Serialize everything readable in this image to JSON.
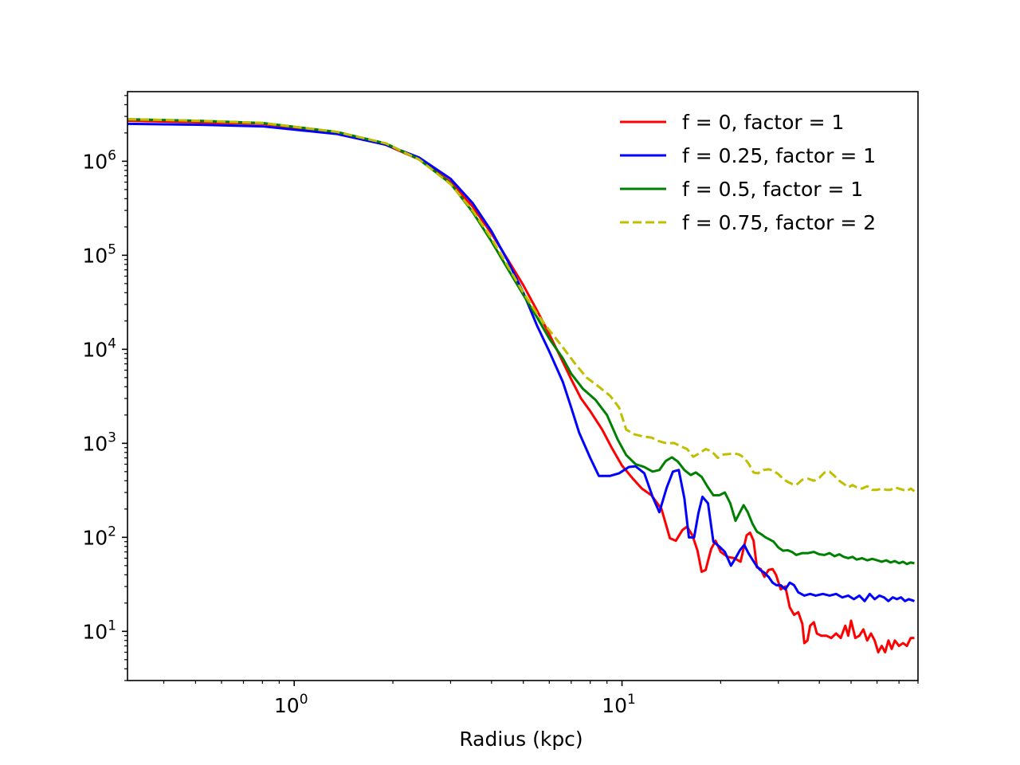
{
  "chart_data": {
    "type": "line",
    "title": "",
    "xlabel": "Radius (kpc)",
    "ylabel": "",
    "xscale": "log",
    "yscale": "log",
    "xlim": [
      0.31,
      80
    ],
    "ylim": [
      3,
      5500000
    ],
    "grid": false,
    "legend_position": "upper-right",
    "x_ticks": [
      {
        "value": 1,
        "base": "10",
        "exp": "0"
      },
      {
        "value": 10,
        "base": "10",
        "exp": "1"
      }
    ],
    "y_ticks": [
      {
        "value": 10,
        "base": "10",
        "exp": "1"
      },
      {
        "value": 100,
        "base": "10",
        "exp": "2"
      },
      {
        "value": 1000,
        "base": "10",
        "exp": "3"
      },
      {
        "value": 10000,
        "base": "10",
        "exp": "4"
      },
      {
        "value": 100000,
        "base": "10",
        "exp": "5"
      },
      {
        "value": 1000000,
        "base": "10",
        "exp": "6"
      }
    ],
    "series": [
      {
        "name": "f = 0, factor = 1",
        "color": "#ff0000",
        "dash": "solid",
        "points": [
          [
            0.31,
            2700000
          ],
          [
            0.5,
            2600000
          ],
          [
            0.8,
            2500000
          ],
          [
            1.35,
            2000000
          ],
          [
            1.9,
            1500000
          ],
          [
            2.4,
            1050000
          ],
          [
            3.0,
            600000
          ],
          [
            3.5,
            330000
          ],
          [
            4.0,
            170000
          ],
          [
            4.5,
            88000
          ],
          [
            5.0,
            48000
          ],
          [
            5.5,
            26000
          ],
          [
            6.0,
            14500
          ],
          [
            6.5,
            8200
          ],
          [
            7.0,
            4800
          ],
          [
            7.5,
            3000
          ],
          [
            8.0,
            2200
          ],
          [
            8.7,
            1400
          ],
          [
            9.3,
            900
          ],
          [
            10.0,
            580
          ],
          [
            10.8,
            420
          ],
          [
            11.5,
            330
          ],
          [
            12.3,
            280
          ],
          [
            13.2,
            200
          ],
          [
            14.0,
            98
          ],
          [
            14.6,
            92
          ],
          [
            15.3,
            120
          ],
          [
            15.8,
            130
          ],
          [
            16.4,
            105
          ],
          [
            17.0,
            72
          ],
          [
            17.5,
            43
          ],
          [
            18.0,
            45
          ],
          [
            18.7,
            75
          ],
          [
            19.3,
            92
          ],
          [
            20.0,
            70
          ],
          [
            21.0,
            62
          ],
          [
            22.0,
            60
          ],
          [
            23.0,
            55
          ],
          [
            24.0,
            105
          ],
          [
            24.6,
            112
          ],
          [
            25.2,
            92
          ],
          [
            25.8,
            48
          ],
          [
            26.5,
            46
          ],
          [
            27.2,
            38
          ],
          [
            28.0,
            45
          ],
          [
            28.8,
            46
          ],
          [
            29.5,
            40
          ],
          [
            30.5,
            28
          ],
          [
            31.5,
            30
          ],
          [
            32.5,
            18
          ],
          [
            33.5,
            15
          ],
          [
            34.5,
            16
          ],
          [
            35.5,
            12
          ],
          [
            36.0,
            7.5
          ],
          [
            36.8,
            8
          ],
          [
            37.5,
            11.5
          ],
          [
            38.5,
            12.5
          ],
          [
            39.3,
            9.5
          ],
          [
            40.5,
            9
          ],
          [
            42.0,
            9
          ],
          [
            43.5,
            8.5
          ],
          [
            45.0,
            9.5
          ],
          [
            46.5,
            8.5
          ],
          [
            48.0,
            11.5
          ],
          [
            49.0,
            9
          ],
          [
            50.0,
            13
          ],
          [
            51.5,
            8.5
          ],
          [
            53.0,
            9
          ],
          [
            54.5,
            10.5
          ],
          [
            56.0,
            8
          ],
          [
            57.5,
            9.5
          ],
          [
            59.0,
            8
          ],
          [
            60.5,
            6
          ],
          [
            62.0,
            7
          ],
          [
            63.5,
            6
          ],
          [
            65.0,
            8
          ],
          [
            66.5,
            6.5
          ],
          [
            68.0,
            8
          ],
          [
            70.0,
            7
          ],
          [
            72.0,
            7.5
          ],
          [
            74.0,
            7
          ],
          [
            76.0,
            8.5
          ],
          [
            78.0,
            8.5
          ]
        ]
      },
      {
        "name": "f = 0.25, factor = 1",
        "color": "#0000ff",
        "dash": "solid",
        "points": [
          [
            0.31,
            2500000
          ],
          [
            0.5,
            2450000
          ],
          [
            0.8,
            2350000
          ],
          [
            1.35,
            1950000
          ],
          [
            1.9,
            1500000
          ],
          [
            2.4,
            1100000
          ],
          [
            3.0,
            650000
          ],
          [
            3.5,
            360000
          ],
          [
            4.0,
            180000
          ],
          [
            4.5,
            85000
          ],
          [
            5.0,
            40000
          ],
          [
            5.5,
            18000
          ],
          [
            6.0,
            9500
          ],
          [
            6.6,
            4500
          ],
          [
            7.0,
            2400
          ],
          [
            7.4,
            1300
          ],
          [
            8.0,
            700
          ],
          [
            8.5,
            450
          ],
          [
            9.2,
            450
          ],
          [
            9.8,
            480
          ],
          [
            10.5,
            560
          ],
          [
            11.0,
            570
          ],
          [
            11.7,
            480
          ],
          [
            12.4,
            270
          ],
          [
            13.0,
            185
          ],
          [
            13.7,
            340
          ],
          [
            14.3,
            500
          ],
          [
            14.9,
            520
          ],
          [
            15.5,
            260
          ],
          [
            16.0,
            100
          ],
          [
            16.6,
            100
          ],
          [
            17.1,
            180
          ],
          [
            17.6,
            270
          ],
          [
            18.3,
            230
          ],
          [
            19.0,
            90
          ],
          [
            19.8,
            80
          ],
          [
            20.6,
            70
          ],
          [
            21.5,
            50
          ],
          [
            22.2,
            60
          ],
          [
            22.9,
            73
          ],
          [
            23.6,
            83
          ],
          [
            24.3,
            68
          ],
          [
            25.0,
            58
          ],
          [
            25.7,
            50
          ],
          [
            26.4,
            45
          ],
          [
            27.2,
            42
          ],
          [
            28.0,
            38
          ],
          [
            28.8,
            33
          ],
          [
            29.6,
            31
          ],
          [
            30.5,
            31
          ],
          [
            31.5,
            28
          ],
          [
            32.5,
            33
          ],
          [
            33.5,
            31
          ],
          [
            34.5,
            26
          ],
          [
            36.0,
            24
          ],
          [
            37.5,
            25
          ],
          [
            39.0,
            24
          ],
          [
            41.0,
            25
          ],
          [
            43.0,
            24
          ],
          [
            45.0,
            25
          ],
          [
            47.0,
            23
          ],
          [
            49.0,
            24
          ],
          [
            51.0,
            22
          ],
          [
            53.0,
            24
          ],
          [
            55.0,
            21
          ],
          [
            57.0,
            25
          ],
          [
            59.0,
            22
          ],
          [
            61.0,
            24
          ],
          [
            63.0,
            23
          ],
          [
            65.0,
            21
          ],
          [
            67.0,
            23
          ],
          [
            69.0,
            22
          ],
          [
            71.0,
            23
          ],
          [
            73.0,
            21
          ],
          [
            75.0,
            22
          ],
          [
            78.0,
            21
          ]
        ]
      },
      {
        "name": "f = 0.5, factor = 1",
        "color": "#008000",
        "dash": "solid",
        "points": [
          [
            0.31,
            2800000
          ],
          [
            0.5,
            2700000
          ],
          [
            0.8,
            2550000
          ],
          [
            1.35,
            2050000
          ],
          [
            1.9,
            1550000
          ],
          [
            2.4,
            1050000
          ],
          [
            3.0,
            580000
          ],
          [
            3.5,
            290000
          ],
          [
            4.0,
            140000
          ],
          [
            4.5,
            70000
          ],
          [
            5.0,
            38000
          ],
          [
            5.5,
            22000
          ],
          [
            6.0,
            13000
          ],
          [
            6.6,
            8000
          ],
          [
            7.0,
            5500
          ],
          [
            7.6,
            3800
          ],
          [
            8.3,
            2900
          ],
          [
            9.0,
            2000
          ],
          [
            9.7,
            1100
          ],
          [
            10.3,
            750
          ],
          [
            11.0,
            600
          ],
          [
            11.7,
            560
          ],
          [
            12.4,
            500
          ],
          [
            13.0,
            520
          ],
          [
            13.6,
            650
          ],
          [
            14.2,
            710
          ],
          [
            14.8,
            640
          ],
          [
            15.5,
            520
          ],
          [
            16.2,
            460
          ],
          [
            16.8,
            490
          ],
          [
            17.5,
            440
          ],
          [
            18.2,
            350
          ],
          [
            19.0,
            280
          ],
          [
            19.8,
            280
          ],
          [
            20.6,
            300
          ],
          [
            21.4,
            230
          ],
          [
            22.2,
            150
          ],
          [
            22.9,
            185
          ],
          [
            23.5,
            220
          ],
          [
            24.2,
            185
          ],
          [
            25.0,
            140
          ],
          [
            25.8,
            115
          ],
          [
            26.6,
            108
          ],
          [
            27.4,
            100
          ],
          [
            28.2,
            95
          ],
          [
            29.0,
            90
          ],
          [
            30.0,
            78
          ],
          [
            31.0,
            72
          ],
          [
            32.0,
            73
          ],
          [
            33.0,
            70
          ],
          [
            34.0,
            65
          ],
          [
            35.5,
            68
          ],
          [
            37.0,
            68
          ],
          [
            38.5,
            70
          ],
          [
            40.0,
            66
          ],
          [
            41.5,
            65
          ],
          [
            43.0,
            68
          ],
          [
            44.5,
            63
          ],
          [
            46.0,
            66
          ],
          [
            47.5,
            62
          ],
          [
            49.0,
            60
          ],
          [
            50.5,
            62
          ],
          [
            52.0,
            58
          ],
          [
            54.0,
            60
          ],
          [
            56.0,
            57
          ],
          [
            58.0,
            59
          ],
          [
            60.0,
            57
          ],
          [
            62.0,
            55
          ],
          [
            64.0,
            57
          ],
          [
            66.0,
            54
          ],
          [
            68.0,
            56
          ],
          [
            70.0,
            53
          ],
          [
            72.0,
            55
          ],
          [
            74.0,
            52
          ],
          [
            76.0,
            54
          ],
          [
            78.0,
            53
          ]
        ]
      },
      {
        "name": "f = 0.75, factor = 2",
        "color": "#bfbf00",
        "dash": "dashed",
        "points": [
          [
            0.31,
            2800000
          ],
          [
            0.5,
            2700000
          ],
          [
            0.8,
            2550000
          ],
          [
            1.35,
            2050000
          ],
          [
            1.9,
            1550000
          ],
          [
            2.4,
            1050000
          ],
          [
            3.0,
            570000
          ],
          [
            3.5,
            300000
          ],
          [
            4.0,
            150000
          ],
          [
            4.5,
            75000
          ],
          [
            5.0,
            40000
          ],
          [
            5.5,
            24000
          ],
          [
            6.0,
            16000
          ],
          [
            6.6,
            10500
          ],
          [
            7.2,
            7000
          ],
          [
            7.8,
            5000
          ],
          [
            8.5,
            4000
          ],
          [
            9.2,
            3200
          ],
          [
            9.8,
            2400
          ],
          [
            10.3,
            1400
          ],
          [
            10.9,
            1250
          ],
          [
            11.6,
            1180
          ],
          [
            12.3,
            1150
          ],
          [
            13.0,
            1050
          ],
          [
            13.7,
            1000
          ],
          [
            14.4,
            1010
          ],
          [
            15.1,
            930
          ],
          [
            15.8,
            870
          ],
          [
            16.5,
            720
          ],
          [
            17.2,
            780
          ],
          [
            18.0,
            870
          ],
          [
            18.8,
            820
          ],
          [
            19.6,
            700
          ],
          [
            20.4,
            760
          ],
          [
            21.2,
            770
          ],
          [
            22.0,
            780
          ],
          [
            22.8,
            760
          ],
          [
            23.6,
            700
          ],
          [
            24.4,
            600
          ],
          [
            25.2,
            490
          ],
          [
            26.0,
            480
          ],
          [
            27.0,
            520
          ],
          [
            28.0,
            530
          ],
          [
            29.0,
            510
          ],
          [
            30.0,
            470
          ],
          [
            31.0,
            420
          ],
          [
            32.0,
            390
          ],
          [
            33.0,
            370
          ],
          [
            34.0,
            360
          ],
          [
            35.5,
            410
          ],
          [
            37.0,
            420
          ],
          [
            38.5,
            400
          ],
          [
            40.0,
            430
          ],
          [
            41.5,
            490
          ],
          [
            43.0,
            500
          ],
          [
            44.5,
            450
          ],
          [
            46.0,
            400
          ],
          [
            47.5,
            370
          ],
          [
            49.0,
            340
          ],
          [
            50.5,
            360
          ],
          [
            52.0,
            340
          ],
          [
            54.0,
            330
          ],
          [
            56.0,
            350
          ],
          [
            58.0,
            320
          ],
          [
            60.0,
            320
          ],
          [
            62.0,
            330
          ],
          [
            64.0,
            320
          ],
          [
            66.0,
            320
          ],
          [
            68.0,
            340
          ],
          [
            70.0,
            330
          ],
          [
            72.0,
            320
          ],
          [
            74.0,
            310
          ],
          [
            76.0,
            330
          ],
          [
            78.0,
            310
          ]
        ]
      }
    ]
  }
}
